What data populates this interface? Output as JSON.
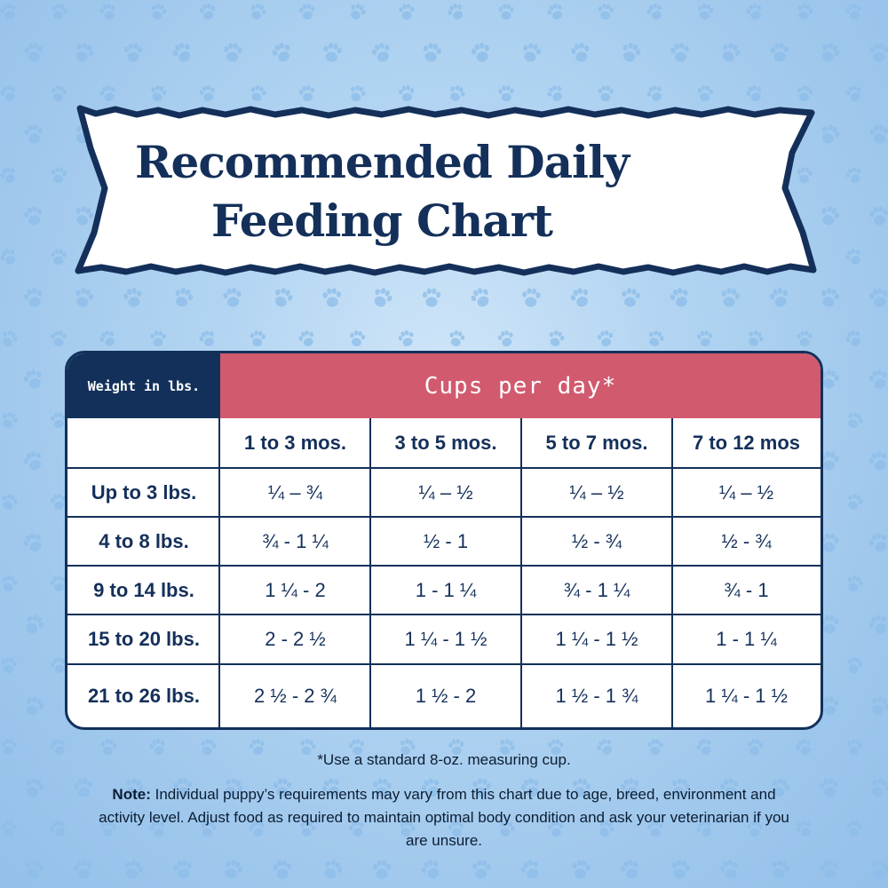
{
  "title": {
    "line1": "Recommended Daily",
    "line2": "Feeding Chart"
  },
  "table": {
    "weight_header": "Weight in lbs.",
    "cups_header": "Cups per day*",
    "columns": [
      "1 to 3 mos.",
      "3 to 5 mos.",
      "5 to 7 mos.",
      "7 to 12 mos"
    ],
    "rows": [
      {
        "weight": "Up to 3 lbs.",
        "values": [
          "¼ – ¾",
          "¼ – ½",
          "¼ – ½",
          "¼ – ½"
        ]
      },
      {
        "weight": "4 to 8 lbs.",
        "values": [
          "¾ - 1 ¼",
          "½ - 1",
          "½ - ¾",
          "½ - ¾"
        ]
      },
      {
        "weight": "9 to 14 lbs.",
        "values": [
          "1 ¼ - 2",
          "1 - 1 ¼",
          "¾ - 1 ¼",
          "¾ - 1"
        ]
      },
      {
        "weight": "15 to 20 lbs.",
        "values": [
          "2 - 2 ½",
          "1 ¼ - 1 ½",
          "1 ¼ - 1 ½",
          "1 - 1 ¼"
        ]
      },
      {
        "weight": "21 to 26 lbs.",
        "values": [
          "2 ½ - 2 ¾",
          "1 ½ - 2",
          "1 ½ - 1 ¾",
          "1 ¼ - 1 ½"
        ]
      }
    ]
  },
  "footnote": "*Use a standard 8-oz. measuring cup.",
  "note": {
    "label": "Note:",
    "text": " Individual puppy’s requirements may vary from this chart due to age, breed, environment and activity level. Adjust food as required to maintain optimal body condition and ask  your veterinarian if you are unsure."
  },
  "colors": {
    "navy": "#12305a",
    "header_pink": "#d25a6e",
    "background_blue": "#a9cfef",
    "paw_blue": "#8dbde8"
  },
  "decoration": {
    "background_pattern": "paw-print-icon"
  }
}
